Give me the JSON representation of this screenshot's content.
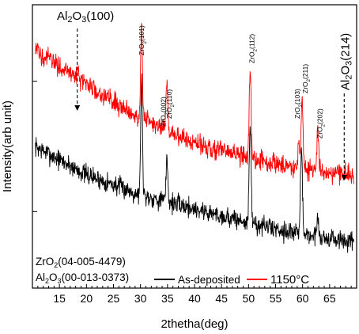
{
  "chart_data": {
    "type": "line",
    "title": "",
    "xlabel": "2thetha(deg)",
    "ylabel": "Intensity(arb unit)",
    "xlim": [
      10,
      70
    ],
    "x_ticks": [
      15,
      20,
      25,
      30,
      35,
      40,
      45,
      50,
      55,
      60,
      65
    ],
    "y_ticks_shown_without_labels": true,
    "grid": false,
    "legend_position": "bottom-right",
    "series": [
      {
        "name": "As-deposited",
        "color": "#000000",
        "peaks": [
          {
            "x": 30.2,
            "height": 0.42,
            "width": 0.22
          },
          {
            "x": 34.9,
            "height": 0.16,
            "width": 0.22
          },
          {
            "x": 50.3,
            "height": 0.34,
            "width": 0.25
          },
          {
            "x": 59.8,
            "height": 0.31,
            "width": 0.25
          },
          {
            "x": 62.8,
            "height": 0.08,
            "width": 0.22
          }
        ],
        "background_points": [
          [
            10.5,
            0.5
          ],
          [
            20,
            0.4
          ],
          [
            30,
            0.33
          ],
          [
            40,
            0.28
          ],
          [
            50,
            0.23
          ],
          [
            60,
            0.19
          ],
          [
            69.5,
            0.16
          ]
        ],
        "noise_amplitude": 0.035
      },
      {
        "name": "1150°C",
        "color": "#ff0000",
        "peaks": [
          {
            "x": 18.5,
            "height": 0.04,
            "width": 0.2
          },
          {
            "x": 30.2,
            "height": 0.34,
            "width": 0.22
          },
          {
            "x": 34.9,
            "height": 0.17,
            "width": 0.22
          },
          {
            "x": 50.3,
            "height": 0.3,
            "width": 0.25
          },
          {
            "x": 59.3,
            "height": 0.1,
            "width": 0.22
          },
          {
            "x": 59.9,
            "height": 0.25,
            "width": 0.25
          },
          {
            "x": 62.8,
            "height": 0.14,
            "width": 0.22
          }
        ],
        "background_points": [
          [
            10.5,
            0.84
          ],
          [
            20,
            0.72
          ],
          [
            30,
            0.6
          ],
          [
            40,
            0.51
          ],
          [
            50,
            0.46
          ],
          [
            60,
            0.42
          ],
          [
            69.5,
            0.4
          ]
        ],
        "noise_amplitude": 0.035
      }
    ],
    "peak_labels": [
      {
        "text": "ZrO2(101)",
        "x": 30.2
      },
      {
        "text": "ZrO2(002)",
        "x": 34.1
      },
      {
        "text": "ZrO2(110)",
        "x": 35.2
      },
      {
        "text": "ZrO2(112)",
        "x": 50.5
      },
      {
        "text": "ZrO2(103)",
        "x": 59.0
      },
      {
        "text": "ZrO2(211)",
        "x": 60.4
      },
      {
        "text": "ZrO2(202)",
        "x": 63.1
      }
    ],
    "arrow_annotations": [
      {
        "text": "Al2O3(100)",
        "x": 18.3
      },
      {
        "text": "Al2O3(214)",
        "x": 67.7
      }
    ],
    "reference_notes": [
      "ZrO2(04-005-4479)",
      "Al2O3(00-013-0373)"
    ]
  }
}
